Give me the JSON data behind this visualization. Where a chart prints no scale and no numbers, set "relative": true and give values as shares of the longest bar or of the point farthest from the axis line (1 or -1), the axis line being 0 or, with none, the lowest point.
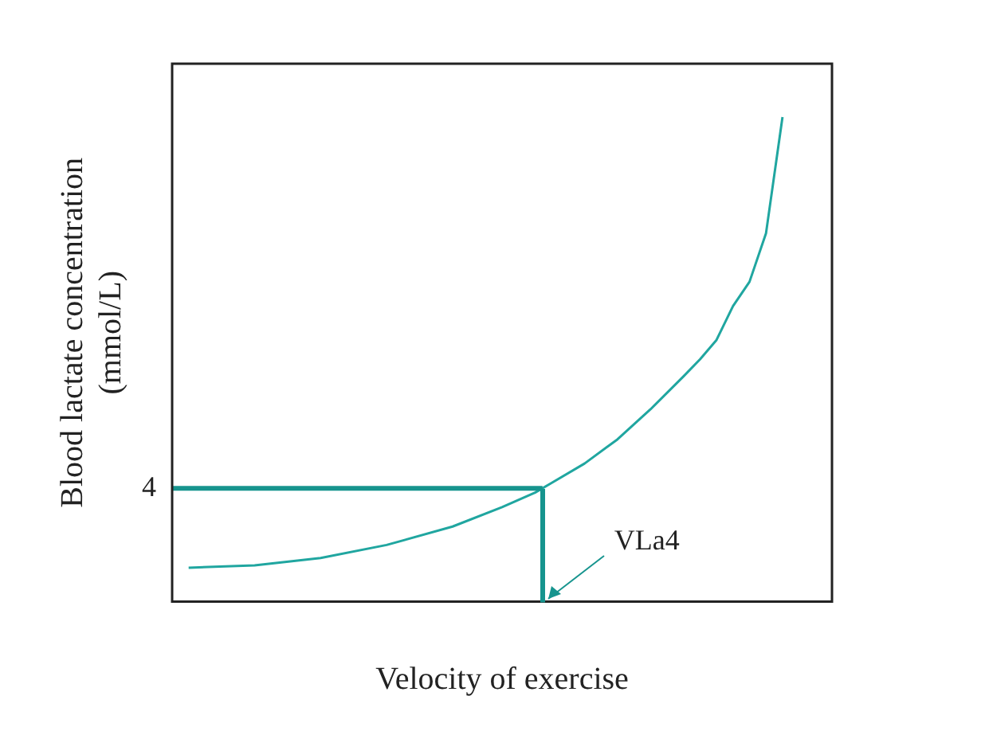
{
  "chart_data": {
    "type": "line",
    "relative": true,
    "xlabel": "Velocity of exercise",
    "ylabel": "Blood lactate concentration\n(mmol/L)",
    "categories": [
      null,
      null,
      null,
      null,
      null,
      null,
      null,
      null,
      null,
      null,
      null,
      null,
      null,
      null,
      null,
      null,
      null,
      null,
      null,
      null,
      null,
      null,
      null,
      null,
      null,
      null,
      null,
      null,
      null,
      null,
      null,
      null,
      null,
      null,
      null,
      null,
      null,
      null,
      null,
      null,
      null
    ],
    "series": [
      {
        "color": "#20a6a0",
        "values": [
          null,
          0.07,
          null,
          null,
          null,
          0.075,
          null,
          null,
          null,
          0.09,
          null,
          null,
          null,
          0.117,
          null,
          null,
          null,
          0.155,
          null,
          null,
          0.195,
          null,
          0.225,
          0.245,
          null,
          0.285,
          null,
          0.335,
          null,
          0.397,
          null,
          0.465,
          0.5,
          0.54,
          0.61,
          0.66,
          0.76,
          1.0,
          null,
          null,
          null
        ]
      }
    ],
    "ref_lines": [
      {
        "axis": "y",
        "value": 0.234,
        "color": "#16948e"
      }
    ],
    "annotations": [
      "4",
      "VLa4"
    ],
    "marker": "none",
    "grid": false,
    "legend": false
  }
}
